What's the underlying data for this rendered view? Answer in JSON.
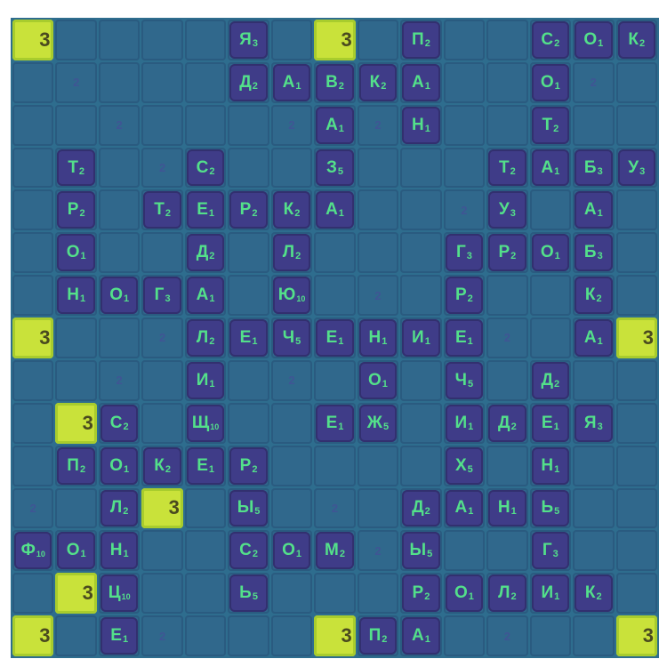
{
  "board": {
    "size": 15,
    "rows": [
      [
        {
          "p": "x3"
        },
        {},
        {},
        {},
        {},
        {
          "l": "Я",
          "s": "3"
        },
        {},
        {
          "p": "x3"
        },
        {},
        {
          "l": "П",
          "s": "2"
        },
        {},
        {},
        {
          "l": "С",
          "s": "2"
        },
        {
          "l": "О",
          "s": "1"
        },
        {
          "l": "К",
          "s": "2"
        }
      ],
      [
        {},
        {
          "p": "x2"
        },
        {},
        {},
        {},
        {
          "l": "Д",
          "s": "2"
        },
        {
          "l": "А",
          "s": "1"
        },
        {
          "l": "В",
          "s": "2"
        },
        {
          "l": "К",
          "s": "2"
        },
        {
          "l": "А",
          "s": "1"
        },
        {},
        {},
        {
          "l": "О",
          "s": "1"
        },
        {
          "p": "x2"
        },
        {}
      ],
      [
        {},
        {},
        {
          "p": "x2"
        },
        {},
        {},
        {},
        {
          "p": "x2"
        },
        {
          "l": "А",
          "s": "1"
        },
        {
          "p": "x2"
        },
        {
          "l": "Н",
          "s": "1"
        },
        {},
        {},
        {
          "l": "Т",
          "s": "2"
        },
        {},
        {}
      ],
      [
        {},
        {
          "l": "Т",
          "s": "2"
        },
        {},
        {
          "p": "x2"
        },
        {
          "l": "С",
          "s": "2"
        },
        {},
        {},
        {
          "l": "З",
          "s": "5"
        },
        {},
        {},
        {},
        {
          "l": "Т",
          "s": "2"
        },
        {
          "l": "А",
          "s": "1"
        },
        {
          "l": "Б",
          "s": "3"
        },
        {
          "l": "У",
          "s": "3"
        }
      ],
      [
        {},
        {
          "l": "Р",
          "s": "2"
        },
        {},
        {
          "l": "Т",
          "s": "2"
        },
        {
          "l": "Е",
          "s": "1"
        },
        {
          "l": "Р",
          "s": "2"
        },
        {
          "l": "К",
          "s": "2"
        },
        {
          "l": "А",
          "s": "1"
        },
        {},
        {},
        {
          "p": "x2"
        },
        {
          "l": "У",
          "s": "3"
        },
        {},
        {
          "l": "А",
          "s": "1"
        },
        {}
      ],
      [
        {},
        {
          "l": "О",
          "s": "1"
        },
        {},
        {},
        {
          "l": "Д",
          "s": "2"
        },
        {},
        {
          "l": "Л",
          "s": "2"
        },
        {},
        {},
        {},
        {
          "l": "Г",
          "s": "3"
        },
        {
          "l": "Р",
          "s": "2"
        },
        {
          "l": "О",
          "s": "1"
        },
        {
          "l": "Б",
          "s": "3"
        },
        {}
      ],
      [
        {},
        {
          "l": "Н",
          "s": "1"
        },
        {
          "l": "О",
          "s": "1"
        },
        {
          "l": "Г",
          "s": "3"
        },
        {
          "l": "А",
          "s": "1"
        },
        {},
        {
          "l": "Ю",
          "s": "10"
        },
        {},
        {
          "p": "x2"
        },
        {},
        {
          "l": "Р",
          "s": "2"
        },
        {},
        {},
        {
          "l": "К",
          "s": "2"
        },
        {}
      ],
      [
        {
          "p": "x3"
        },
        {},
        {},
        {
          "p": "x2"
        },
        {
          "l": "Л",
          "s": "2"
        },
        {
          "l": "Е",
          "s": "1"
        },
        {
          "l": "Ч",
          "s": "5"
        },
        {
          "l": "Е",
          "s": "1"
        },
        {
          "l": "Н",
          "s": "1"
        },
        {
          "l": "И",
          "s": "1"
        },
        {
          "l": "Е",
          "s": "1"
        },
        {
          "p": "x2"
        },
        {},
        {
          "l": "А",
          "s": "1"
        },
        {
          "p": "x3"
        }
      ],
      [
        {},
        {},
        {
          "p": "x2"
        },
        {},
        {
          "l": "И",
          "s": "1"
        },
        {},
        {
          "p": "x2"
        },
        {},
        {
          "l": "О",
          "s": "1"
        },
        {},
        {
          "l": "Ч",
          "s": "5"
        },
        {},
        {
          "l": "Д",
          "s": "2"
        },
        {},
        {}
      ],
      [
        {},
        {
          "p": "x3"
        },
        {
          "l": "С",
          "s": "2"
        },
        {},
        {
          "l": "Щ",
          "s": "10"
        },
        {},
        {},
        {
          "l": "Е",
          "s": "1"
        },
        {
          "l": "Ж",
          "s": "5"
        },
        {},
        {
          "l": "И",
          "s": "1"
        },
        {
          "l": "Д",
          "s": "2"
        },
        {
          "l": "Е",
          "s": "1"
        },
        {
          "l": "Я",
          "s": "3"
        },
        {}
      ],
      [
        {},
        {
          "l": "П",
          "s": "2"
        },
        {
          "l": "О",
          "s": "1"
        },
        {
          "l": "К",
          "s": "2"
        },
        {
          "l": "Е",
          "s": "1"
        },
        {
          "l": "Р",
          "s": "2"
        },
        {},
        {},
        {},
        {},
        {
          "l": "Х",
          "s": "5"
        },
        {},
        {
          "l": "Н",
          "s": "1"
        },
        {},
        {}
      ],
      [
        {
          "p": "x2"
        },
        {},
        {
          "l": "Л",
          "s": "2"
        },
        {
          "p": "x3"
        },
        {},
        {
          "l": "Ы",
          "s": "5"
        },
        {},
        {
          "p": "x2"
        },
        {},
        {
          "l": "Д",
          "s": "2"
        },
        {
          "l": "А",
          "s": "1"
        },
        {
          "l": "Н",
          "s": "1"
        },
        {
          "l": "Ь",
          "s": "5"
        },
        {},
        {}
      ],
      [
        {
          "l": "Ф",
          "s": "10"
        },
        {
          "l": "О",
          "s": "1"
        },
        {
          "l": "Н",
          "s": "1"
        },
        {},
        {},
        {
          "l": "С",
          "s": "2"
        },
        {
          "l": "О",
          "s": "1"
        },
        {
          "l": "М",
          "s": "2"
        },
        {
          "p": "x2"
        },
        {
          "l": "Ы",
          "s": "5"
        },
        {},
        {},
        {
          "l": "Г",
          "s": "3"
        },
        {},
        {}
      ],
      [
        {},
        {
          "p": "x3"
        },
        {
          "l": "Ц",
          "s": "10"
        },
        {},
        {},
        {
          "l": "Ь",
          "s": "5"
        },
        {},
        {},
        {},
        {
          "l": "Р",
          "s": "2"
        },
        {
          "l": "О",
          "s": "1"
        },
        {
          "l": "Л",
          "s": "2"
        },
        {
          "l": "И",
          "s": "1"
        },
        {
          "l": "К",
          "s": "2"
        },
        {}
      ],
      [
        {
          "p": "x3"
        },
        {},
        {
          "l": "Е",
          "s": "1"
        },
        {
          "p": "x2"
        },
        {},
        {},
        {},
        {
          "p": "x3"
        },
        {
          "l": "П",
          "s": "2"
        },
        {
          "l": "А",
          "s": "1"
        },
        {},
        {
          "p": "x2"
        },
        {},
        {},
        {
          "p": "x3"
        }
      ]
    ]
  },
  "premium_labels": {
    "x2": "2",
    "x3": "3"
  },
  "colors": {
    "tile_letter": "#53e08a",
    "tile_bg": "#3f3c88",
    "triple": "#c9e23a",
    "board": "#2e6d8e"
  }
}
